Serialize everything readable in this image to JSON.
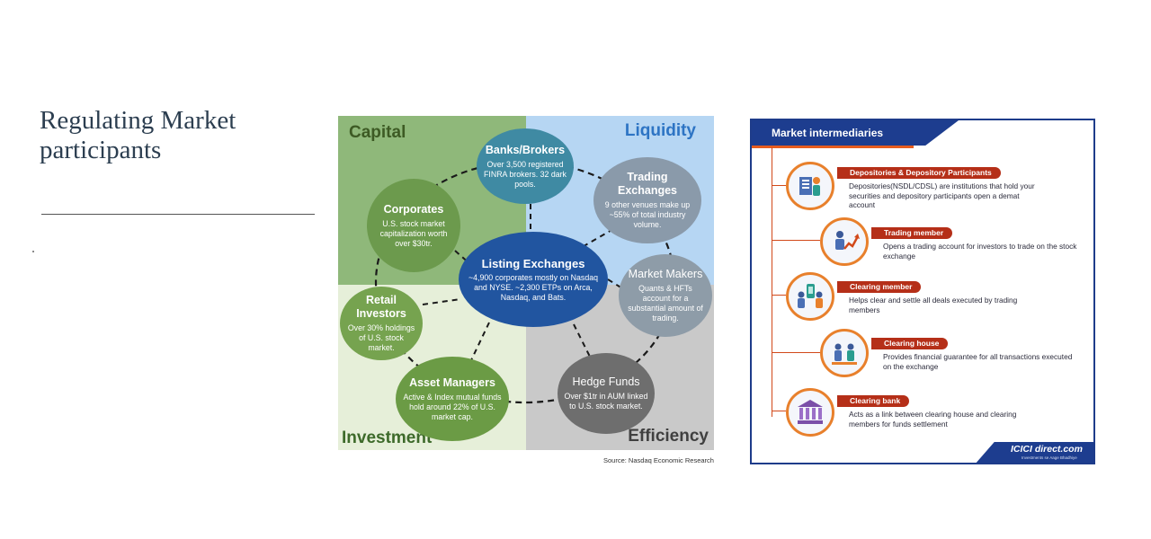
{
  "slide": {
    "title": "Regulating Market\nparticipants"
  },
  "ecosystem": {
    "quadrants": {
      "capital": "Capital",
      "liquidity": "Liquidity",
      "investment": "Investment",
      "efficiency": "Efficiency"
    },
    "nodes": {
      "banks": {
        "title": "Banks/Brokers",
        "desc": "Over 3,500 registered FINRA brokers. 32 dark pools."
      },
      "trading": {
        "title": "Trading Exchanges",
        "desc": "9 other venues make up ~55% of total industry volume."
      },
      "corporates": {
        "title": "Corporates",
        "desc": "U.S. stock market capitalization worth over $30tr."
      },
      "listing": {
        "title": "Listing Exchanges",
        "desc": "~4,900 corporates mostly on Nasdaq and NYSE. ~2,300 ETPs on Arca, Nasdaq, and Bats."
      },
      "market_makers": {
        "title": "Market Makers",
        "desc": "Quants & HFTs account for a substantial amount of trading."
      },
      "retail": {
        "title": "Retail Investors",
        "desc": "Over 30% holdings of U.S. stock market."
      },
      "asset": {
        "title": "Asset Managers",
        "desc": "Active & Index mutual funds hold around 22% of U.S. market cap."
      },
      "hedge": {
        "title": "Hedge Funds",
        "desc": "Over $1tr in AUM linked to U.S. stock market."
      }
    },
    "source": "Source: Nasdaq Economic Research",
    "colors": {
      "capital": "#8fb87a",
      "liquidity": "#b6d6f3",
      "investment": "#e6efd9",
      "efficiency": "#c9c9c9",
      "listing": "#2155a0"
    }
  },
  "intermediaries": {
    "header": "Market intermediaries",
    "items": [
      {
        "title": "Depositories & Depository Participants",
        "desc": "Depositories(NSDL/CDSL) are institutions that hold your securities and depository participants open a demat account",
        "icon": "depository-icon"
      },
      {
        "title": "Trading member",
        "desc": "Opens a trading account for investors to trade on the stock exchange",
        "icon": "trader-icon"
      },
      {
        "title": "Clearing member",
        "desc": "Helps clear and settle all deals executed by trading members",
        "icon": "clearing-member-icon"
      },
      {
        "title": "Clearing house",
        "desc": "Provides financial guarantee for all transactions executed on the exchange",
        "icon": "clearing-house-icon"
      },
      {
        "title": "Clearing bank",
        "desc": "Acts as a link between clearing house and clearing members for funds settlement",
        "icon": "bank-icon"
      }
    ],
    "brand": {
      "logo": "ICICI direct.com",
      "tagline": "Investments se Aage Bhadhiye"
    },
    "colors": {
      "header": "#1d3d8f",
      "title_pill": "#b52f18",
      "accent": "#e8802c"
    }
  }
}
